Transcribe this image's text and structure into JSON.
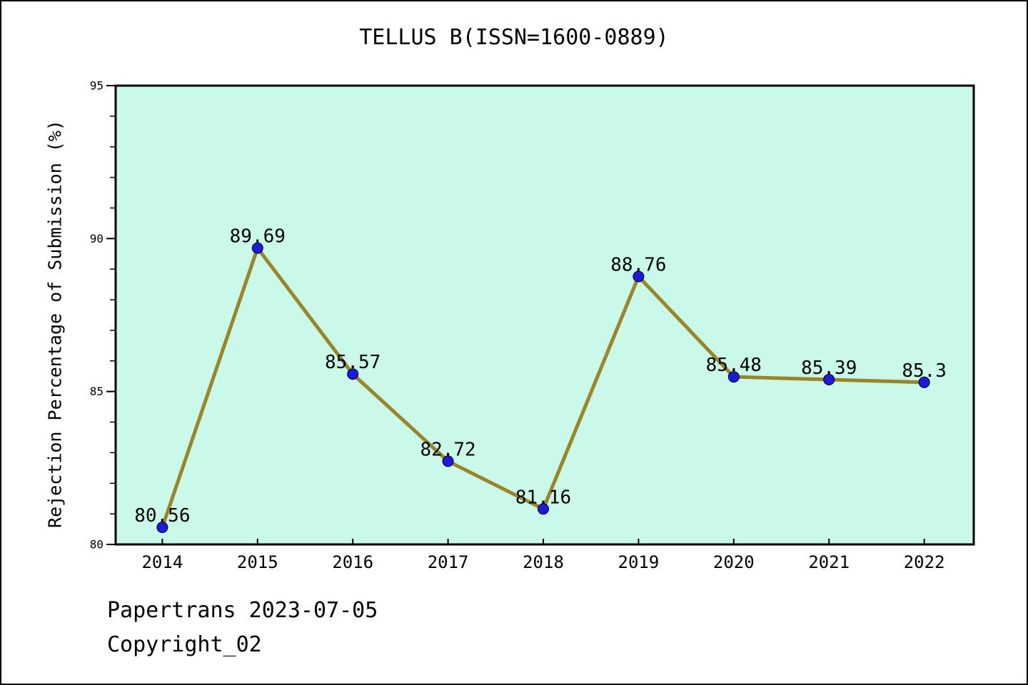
{
  "title": "TELLUS B(ISSN=1600-0889)",
  "footer": {
    "line1": "Papertrans 2023-07-05",
    "line2": "Copyright_02"
  },
  "chart_data": {
    "type": "line",
    "title": "TELLUS B(ISSN=1600-0889)",
    "xlabel": "",
    "ylabel": "Rejection Percentage of Submission (%)",
    "x": [
      2014,
      2015,
      2016,
      2017,
      2018,
      2019,
      2020,
      2021,
      2022
    ],
    "series": [
      {
        "name": "Rejection Percentage of Submission",
        "values": [
          80.56,
          89.69,
          85.57,
          82.72,
          81.16,
          88.76,
          85.48,
          85.39,
          85.3
        ],
        "point_labels": [
          "80.56",
          "89.69",
          "85.57",
          "82.72",
          "81.16",
          "88.76",
          "85.48",
          "85.39",
          "85.3"
        ]
      }
    ],
    "xticks": [
      "2014",
      "2015",
      "2016",
      "2017",
      "2018",
      "2019",
      "2020",
      "2021",
      "2022"
    ],
    "yticks_major": [
      80,
      85,
      90,
      95
    ],
    "ytick_labels": [
      "80",
      "85",
      "90",
      "95"
    ],
    "yticks_minor_step": 1,
    "xlim": [
      2013.51,
      2022.52
    ],
    "ylim": [
      80,
      95
    ],
    "grid": false,
    "legend": null,
    "colors": {
      "line": "#9c8527",
      "marker_fill": "#1a1ae0",
      "marker_edge": "#000000",
      "plot_background": "#c8f9e9",
      "frame": "#000000",
      "text": "#000000"
    }
  }
}
